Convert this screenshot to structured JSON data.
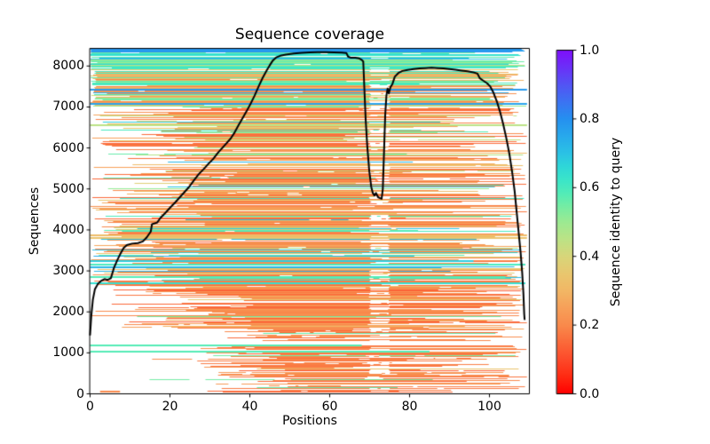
{
  "chart_data": {
    "type": "line",
    "title": "Sequence coverage",
    "xlabel": "Positions",
    "ylabel": "Sequences",
    "colorbar_label": "Sequence identity to query",
    "xlim": [
      0,
      110
    ],
    "ylim": [
      0,
      8430
    ],
    "xticks": [
      "0",
      "20",
      "40",
      "60",
      "80",
      "100"
    ],
    "xtick_values": [
      0,
      20,
      40,
      60,
      80,
      100
    ],
    "yticks": [
      "0",
      "1000",
      "2000",
      "3000",
      "4000",
      "5000",
      "6000",
      "7000",
      "8000"
    ],
    "ytick_values": [
      0,
      1000,
      2000,
      3000,
      4000,
      5000,
      6000,
      7000,
      8000
    ],
    "colorbar_ticks": [
      "0.0",
      "0.2",
      "0.4",
      "0.6",
      "0.8",
      "1.0"
    ],
    "colorbar_tick_values": [
      0.0,
      0.2,
      0.4,
      0.6,
      0.8,
      1.0
    ],
    "grid": false,
    "background_color": "#ffffff",
    "coverage_line": {
      "color": "#000000",
      "width": 2,
      "points": [
        [
          0,
          1440
        ],
        [
          0.3,
          1900
        ],
        [
          0.7,
          2300
        ],
        [
          1.2,
          2550
        ],
        [
          2,
          2690
        ],
        [
          2.8,
          2760
        ],
        [
          3.6,
          2800
        ],
        [
          4.4,
          2780
        ],
        [
          5.2,
          2820
        ],
        [
          6,
          3080
        ],
        [
          6.8,
          3260
        ],
        [
          7.6,
          3420
        ],
        [
          8.4,
          3560
        ],
        [
          9.2,
          3630
        ],
        [
          10.5,
          3665
        ],
        [
          12,
          3680
        ],
        [
          13.2,
          3720
        ],
        [
          14.2,
          3820
        ],
        [
          15.2,
          3960
        ],
        [
          15.5,
          4140
        ],
        [
          16.8,
          4180
        ],
        [
          17.6,
          4290
        ],
        [
          18.8,
          4410
        ],
        [
          20,
          4540
        ],
        [
          21.2,
          4660
        ],
        [
          22.4,
          4790
        ],
        [
          23.6,
          4920
        ],
        [
          24.8,
          5050
        ],
        [
          26,
          5210
        ],
        [
          27.2,
          5360
        ],
        [
          28.4,
          5480
        ],
        [
          29.6,
          5610
        ],
        [
          30.8,
          5730
        ],
        [
          32,
          5880
        ],
        [
          33.2,
          6010
        ],
        [
          34.2,
          6120
        ],
        [
          35.2,
          6230
        ],
        [
          36.2,
          6380
        ],
        [
          37.2,
          6560
        ],
        [
          38.2,
          6730
        ],
        [
          39.2,
          6900
        ],
        [
          40.2,
          7080
        ],
        [
          41.2,
          7280
        ],
        [
          42.2,
          7500
        ],
        [
          43.2,
          7710
        ],
        [
          44.2,
          7890
        ],
        [
          45,
          8020
        ],
        [
          45.8,
          8140
        ],
        [
          46.6,
          8210
        ],
        [
          47.6,
          8250
        ],
        [
          49,
          8280
        ],
        [
          51,
          8305
        ],
        [
          53,
          8320
        ],
        [
          55,
          8330
        ],
        [
          57,
          8338
        ],
        [
          59,
          8340
        ],
        [
          61,
          8335
        ],
        [
          63,
          8325
        ],
        [
          64.2,
          8315
        ],
        [
          64.6,
          8230
        ],
        [
          65.2,
          8205
        ],
        [
          66.4,
          8200
        ],
        [
          67.4,
          8185
        ],
        [
          68,
          8150
        ],
        [
          68.4,
          8110
        ],
        [
          68.7,
          7400
        ],
        [
          69,
          6700
        ],
        [
          69.4,
          6050
        ],
        [
          69.9,
          5450
        ],
        [
          70.4,
          5050
        ],
        [
          70.8,
          4900
        ],
        [
          71.2,
          4840
        ],
        [
          71.6,
          4900
        ],
        [
          72.1,
          4800
        ],
        [
          72.6,
          4775
        ],
        [
          73,
          4760
        ],
        [
          73.3,
          5000
        ],
        [
          73.6,
          5900
        ],
        [
          73.9,
          6800
        ],
        [
          74.2,
          7280
        ],
        [
          74.5,
          7450
        ],
        [
          74.8,
          7330
        ],
        [
          75.2,
          7480
        ],
        [
          75.7,
          7560
        ],
        [
          76.3,
          7740
        ],
        [
          77.2,
          7830
        ],
        [
          78.2,
          7880
        ],
        [
          79.5,
          7905
        ],
        [
          81,
          7925
        ],
        [
          82.5,
          7940
        ],
        [
          84,
          7950
        ],
        [
          85.5,
          7960
        ],
        [
          87,
          7950
        ],
        [
          88.5,
          7940
        ],
        [
          90,
          7925
        ],
        [
          91.5,
          7910
        ],
        [
          93,
          7890
        ],
        [
          94.5,
          7870
        ],
        [
          96,
          7845
        ],
        [
          97,
          7815
        ],
        [
          97.6,
          7700
        ],
        [
          98.5,
          7640
        ],
        [
          99.4,
          7580
        ],
        [
          100.2,
          7500
        ],
        [
          101,
          7350
        ],
        [
          101.8,
          7150
        ],
        [
          102.6,
          6900
        ],
        [
          103.4,
          6600
        ],
        [
          104.2,
          6250
        ],
        [
          105,
          5850
        ],
        [
          105.7,
          5400
        ],
        [
          106.3,
          4950
        ],
        [
          106.8,
          4450
        ],
        [
          107.3,
          3950
        ],
        [
          107.8,
          3450
        ],
        [
          108.2,
          2950
        ],
        [
          108.5,
          2450
        ],
        [
          108.7,
          1950
        ],
        [
          108.8,
          1820
        ]
      ]
    },
    "identity_colormap": {
      "name": "rainbow_r",
      "stops": [
        [
          0.0,
          "#ff0000"
        ],
        [
          0.05,
          "#ff2a12"
        ],
        [
          0.1,
          "#fd4a2a"
        ],
        [
          0.15,
          "#fb6a3a"
        ],
        [
          0.2,
          "#f98a4c"
        ],
        [
          0.25,
          "#f7a059"
        ],
        [
          0.3,
          "#f2b765"
        ],
        [
          0.35,
          "#e9c76f"
        ],
        [
          0.4,
          "#d8d67a"
        ],
        [
          0.45,
          "#bce386"
        ],
        [
          0.5,
          "#9cea92"
        ],
        [
          0.55,
          "#71eda6"
        ],
        [
          0.58,
          "#55ecb6"
        ],
        [
          0.62,
          "#3ce6c8"
        ],
        [
          0.66,
          "#2fd8d8"
        ],
        [
          0.7,
          "#2bc2e5"
        ],
        [
          0.75,
          "#28a9ec"
        ],
        [
          0.8,
          "#2590f0"
        ],
        [
          0.85,
          "#3c73f2"
        ],
        [
          0.9,
          "#5354f4"
        ],
        [
          0.95,
          "#6b30f8"
        ],
        [
          1.0,
          "#7f0ffa"
        ]
      ]
    },
    "msa_rows": {
      "seed": 1234,
      "gap_band": [
        69.8,
        75.2
      ],
      "bands": [
        {
          "seq": [
            8430,
            8355
          ],
          "fill": 1.0,
          "identity": [
            [
              0.76,
              0.8,
              1
            ]
          ],
          "start": [
            [
              0,
              0.3,
              1
            ]
          ],
          "end": [
            [
              107.8,
              109.4,
              1
            ]
          ],
          "gap_prob": 0,
          "interior_gap_prob": 0
        },
        {
          "seq": [
            8355,
            7900
          ],
          "fill": 0.97,
          "identity": [
            [
              0.54,
              0.66,
              0.72
            ],
            [
              0.42,
              0.52,
              0.09
            ],
            [
              0.28,
              0.36,
              0.05
            ],
            [
              0.68,
              0.8,
              0.07
            ],
            [
              0.6,
              0.68,
              0.07
            ]
          ],
          "start": [
            [
              0,
              0.4,
              0.93
            ],
            [
              0,
              6,
              0.07
            ]
          ],
          "end": [
            [
              104,
              109.4,
              0.82
            ],
            [
              78,
              104,
              0.18
            ]
          ],
          "gap_prob": 0.22,
          "interior_gap_prob": 0.16
        },
        {
          "seq": [
            7900,
            7000
          ],
          "fill": 0.95,
          "identity": [
            [
              0.5,
              0.62,
              0.36
            ],
            [
              0.16,
              0.3,
              0.36
            ],
            [
              0.3,
              0.46,
              0.2
            ],
            [
              0.66,
              0.8,
              0.08
            ]
          ],
          "start": [
            [
              0,
              1.5,
              0.7
            ],
            [
              0,
              16,
              0.3
            ]
          ],
          "end": [
            [
              100,
              109.4,
              0.78
            ],
            [
              70,
              100,
              0.22
            ]
          ],
          "gap_prob": 0.3,
          "interior_gap_prob": 0.22
        },
        {
          "seq": [
            7000,
            4800
          ],
          "fill": 0.9,
          "identity": [
            [
              0.14,
              0.28,
              0.68
            ],
            [
              0.28,
              0.42,
              0.15
            ],
            [
              0.5,
              0.64,
              0.08
            ],
            [
              0.42,
              0.5,
              0.05
            ],
            [
              0.64,
              0.76,
              0.04
            ]
          ],
          "start": [
            [
              0,
              5,
              0.2
            ],
            [
              3,
              30,
              0.55
            ],
            [
              15,
              40,
              0.25
            ]
          ],
          "end": [
            [
              105,
              109.4,
              0.4
            ],
            [
              96,
              105,
              0.3
            ],
            [
              62,
              96,
              0.3
            ]
          ],
          "gap_prob": 0.42,
          "interior_gap_prob": 0.3
        },
        {
          "seq": [
            4800,
            3400
          ],
          "fill": 0.96,
          "identity": [
            [
              0.14,
              0.28,
              0.58
            ],
            [
              0.28,
              0.42,
              0.22
            ],
            [
              0.5,
              0.64,
              0.08
            ],
            [
              0.64,
              0.74,
              0.04
            ],
            [
              0.42,
              0.5,
              0.08
            ]
          ],
          "start": [
            [
              0,
              8,
              0.5
            ],
            [
              5,
              33,
              0.5
            ]
          ],
          "end": [
            [
              105,
              109.4,
              0.42
            ],
            [
              96,
              105,
              0.28
            ],
            [
              64,
              96,
              0.3
            ]
          ],
          "gap_prob": 0.45,
          "interior_gap_prob": 0.3
        },
        {
          "seq": [
            3400,
            2650
          ],
          "fill": 0.95,
          "identity": [
            [
              0.14,
              0.26,
              0.58
            ],
            [
              0.52,
              0.66,
              0.15
            ],
            [
              0.28,
              0.4,
              0.17
            ],
            [
              0.66,
              0.78,
              0.1
            ]
          ],
          "start": [
            [
              0,
              5,
              0.38
            ],
            [
              4,
              28,
              0.62
            ]
          ],
          "end": [
            [
              105,
              109.4,
              0.42
            ],
            [
              96,
              105,
              0.28
            ],
            [
              64,
              96,
              0.3
            ]
          ],
          "gap_prob": 0.45,
          "interior_gap_prob": 0.3
        },
        {
          "seq": [
            2650,
            1600
          ],
          "fill": 0.9,
          "identity": [
            [
              0.13,
              0.25,
              0.78
            ],
            [
              0.26,
              0.38,
              0.13
            ],
            [
              0.52,
              0.62,
              0.09
            ]
          ],
          "start": [
            [
              0,
              16,
              0.22
            ],
            [
              12,
              42,
              0.78
            ]
          ],
          "end": [
            [
              104,
              109.4,
              0.5
            ],
            [
              94,
              104,
              0.2
            ],
            [
              66,
              94,
              0.3
            ]
          ],
          "gap_prob": 0.45,
          "interior_gap_prob": 0.35
        },
        {
          "seq": [
            1600,
            0
          ],
          "fill": 0.78,
          "identity": [
            [
              0.13,
              0.24,
              0.84
            ],
            [
              0.26,
              0.36,
              0.1
            ],
            [
              0.52,
              0.6,
              0.06
            ]
          ],
          "start": [
            [
              26,
              50,
              1
            ]
          ],
          "end": [
            [
              102,
              109.4,
              0.5
            ],
            [
              90,
              102,
              0.2
            ],
            [
              60,
              90,
              0.3
            ]
          ],
          "gap_prob": 0.4,
          "interior_gap_prob": 0.35
        }
      ],
      "special_rows": [
        {
          "seq": 1190,
          "identity": 0.58,
          "span": [
            0,
            68
          ]
        },
        {
          "seq": 1020,
          "identity": 0.58,
          "span": [
            0,
            85
          ]
        },
        {
          "seq": 50,
          "identity": 0.2,
          "span": [
            2.5,
            7.5
          ]
        },
        {
          "seq": 2690,
          "identity": 0.64,
          "span": [
            0,
            109
          ]
        },
        {
          "seq": 3160,
          "identity": 0.6,
          "span": [
            0,
            109
          ]
        },
        {
          "seq": 3230,
          "identity": 0.68,
          "span": [
            0,
            96
          ]
        },
        {
          "seq": 3090,
          "identity": 0.72,
          "span": [
            0,
            88
          ]
        },
        {
          "seq": 2850,
          "identity": 0.58,
          "span": [
            0,
            104
          ]
        },
        {
          "seq": 7430,
          "identity": 0.78,
          "span": [
            0,
            109.4
          ]
        },
        {
          "seq": 7080,
          "identity": 0.76,
          "span": [
            0,
            109.4
          ]
        },
        {
          "seq": 6550,
          "identity": 0.45,
          "span": [
            0,
            109.4
          ]
        },
        {
          "seq": 3800,
          "identity": 0.34,
          "span": [
            0,
            109.4
          ]
        },
        {
          "seq": 3870,
          "identity": 0.32,
          "span": [
            0,
            109.4
          ]
        }
      ]
    }
  }
}
